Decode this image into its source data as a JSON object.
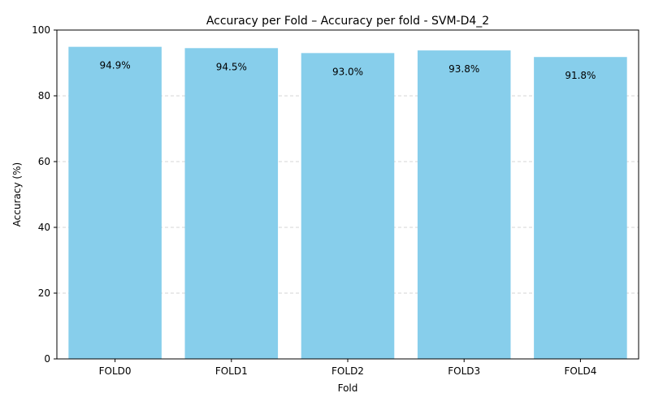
{
  "chart_data": {
    "type": "bar",
    "title": "Accuracy per Fold – Accuracy per fold - SVM-D4_2",
    "xlabel": "Fold",
    "ylabel": "Accuracy (%)",
    "categories": [
      "FOLD0",
      "FOLD1",
      "FOLD2",
      "FOLD3",
      "FOLD4"
    ],
    "values": [
      94.9,
      94.5,
      93.0,
      93.8,
      91.8
    ],
    "data_labels": [
      "94.9%",
      "94.5%",
      "93.0%",
      "93.8%",
      "91.8%"
    ],
    "ylim": [
      0,
      100
    ],
    "yticks": [
      0,
      20,
      40,
      60,
      80,
      100
    ],
    "grid": "y-dashed",
    "legend": "none",
    "colors": {
      "bar": "#87ceeb",
      "grid": "#c8c8c8",
      "axis": "#000000"
    }
  }
}
